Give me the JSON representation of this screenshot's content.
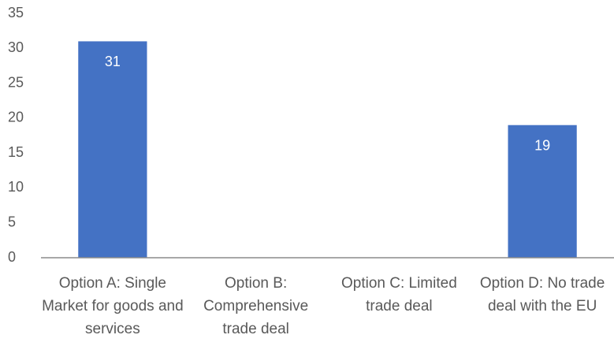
{
  "chart_data": {
    "type": "bar",
    "categories": [
      "Option A: Single Market for goods and services",
      "Option B: Comprehensive trade deal",
      "Option C: Limited trade deal",
      "Option D: No trade deal with the EU"
    ],
    "values": [
      31,
      null,
      null,
      19
    ],
    "color": "#4472c4",
    "ylim": [
      0,
      35
    ],
    "yticks": [
      0,
      5,
      10,
      15,
      20,
      25,
      30,
      35
    ],
    "grid": false,
    "data_labels": true
  }
}
